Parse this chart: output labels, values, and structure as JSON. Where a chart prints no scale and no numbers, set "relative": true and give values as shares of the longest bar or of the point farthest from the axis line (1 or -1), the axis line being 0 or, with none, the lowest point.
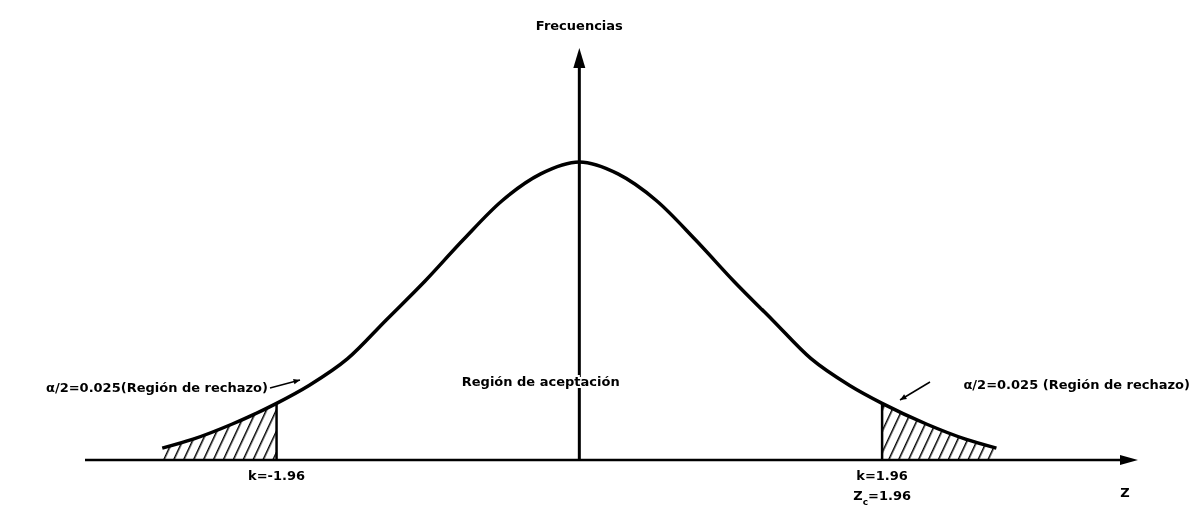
{
  "chart_data": {
    "type": "line",
    "relative": true,
    "xlabel": "Z",
    "x": [
      -2.7,
      -2.5,
      -2.25,
      -1.96,
      -1.75,
      -1.5,
      -1.25,
      -1,
      -0.75,
      -0.5,
      -0.25,
      0,
      0.25,
      0.5,
      0.75,
      1,
      1.25,
      1.5,
      1.75,
      1.96,
      2.25,
      2.5,
      2.7
    ],
    "series": [
      {
        "color": "#000000",
        "values": [
          0.04,
          0.07,
          0.12,
          0.19,
          0.25,
          0.34,
          0.47,
          0.6,
          0.74,
          0.87,
          0.96,
          1,
          0.96,
          0.87,
          0.74,
          0.6,
          0.47,
          0.34,
          0.25,
          0.19,
          0.12,
          0.07,
          0.04
        ]
      }
    ],
    "xlim": [
      -3.2,
      3.5
    ],
    "xticks": [
      {
        "value": -1.96,
        "label": "k=-1.96"
      },
      {
        "value": 1.96,
        "label": "k=1.96"
      }
    ],
    "bands": [
      {
        "axis": "x",
        "from": -2.7,
        "to": -1.96,
        "label": "α/2=0.025(Región de rechazo)"
      },
      {
        "axis": "x",
        "from": 1.96,
        "to": 2.7,
        "label": "α/2=0.025 (Región de rechazo)"
      }
    ],
    "annotations": [
      "Región de aceptación",
      "Z$_{c}$=1.96",
      "Frecuencias"
    ],
    "marker": "none",
    "line_style": "solid"
  }
}
